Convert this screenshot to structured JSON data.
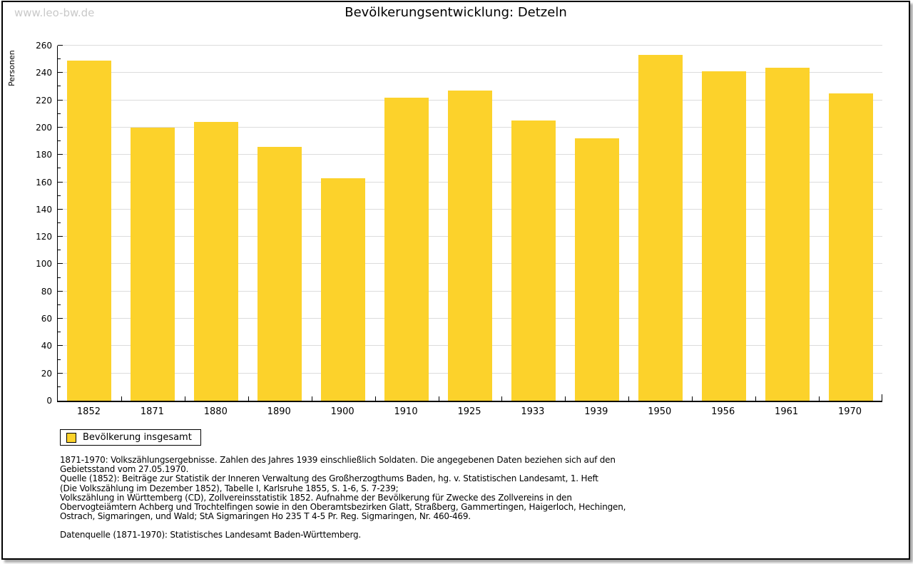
{
  "watermark": "www.leo-bw.de",
  "title": "Bevölkerungsentwicklung: Detzeln",
  "chart_data": {
    "type": "bar",
    "title": "Bevölkerungsentwicklung: Detzeln",
    "ylabel": "Personen",
    "xlabel": "",
    "categories": [
      "1852",
      "1871",
      "1880",
      "1890",
      "1900",
      "1910",
      "1925",
      "1933",
      "1939",
      "1950",
      "1956",
      "1961",
      "1970"
    ],
    "series": [
      {
        "name": "Bevölkerung insgesamt",
        "color": "#FCD22B",
        "values": [
          249,
          200,
          204,
          186,
          163,
          222,
          227,
          205,
          192,
          253,
          241,
          244,
          225
        ]
      }
    ],
    "ylim": [
      0,
      260
    ],
    "y_major_step": 20,
    "y_minor_step": 10,
    "grid": true,
    "legend_position": "bottom-left"
  },
  "legend": {
    "label": "Bevölkerung insgesamt",
    "swatch_color": "#FCD22B"
  },
  "footnote": {
    "lines": [
      "1871-1970: Volkszählungsergebnisse. Zahlen des Jahres 1939 einschließlich Soldaten. Die angegebenen Daten beziehen sich auf den",
      "Gebietsstand vom 27.05.1970.",
      "Quelle (1852): Beiträge zur Statistik der Inneren Verwaltung des Großherzogthums Baden, hg. v. Statistischen Landesamt, 1. Heft",
      "(Die Volkszählung im Dezember 1852), Tabelle I, Karlsruhe 1855, S. 1-6, S. 7-239;",
      "Volkszählung in Württemberg (CD), Zollvereinsstatistik 1852. Aufnahme der Bevölkerung für Zwecke des Zollvereins in den",
      "Obervogteiämtern Achberg und Trochtelfingen sowie in den Oberamtsbezirken Glatt, Straßberg, Gammertingen, Haigerloch, Hechingen,",
      "Ostrach, Sigmaringen, und Wald; StA Sigmaringen Ho 235 T 4-5 Pr. Reg. Sigmaringen, Nr. 460-469."
    ],
    "datasource": "Datenquelle (1871-1970): Statistisches Landesamt Baden-Württemberg."
  },
  "colors": {
    "bar": "#FCD22B",
    "grid": "#DCDCDC",
    "axis": "#000000",
    "watermark": "#C9C9C9",
    "page_background": "#FFFFFF"
  }
}
